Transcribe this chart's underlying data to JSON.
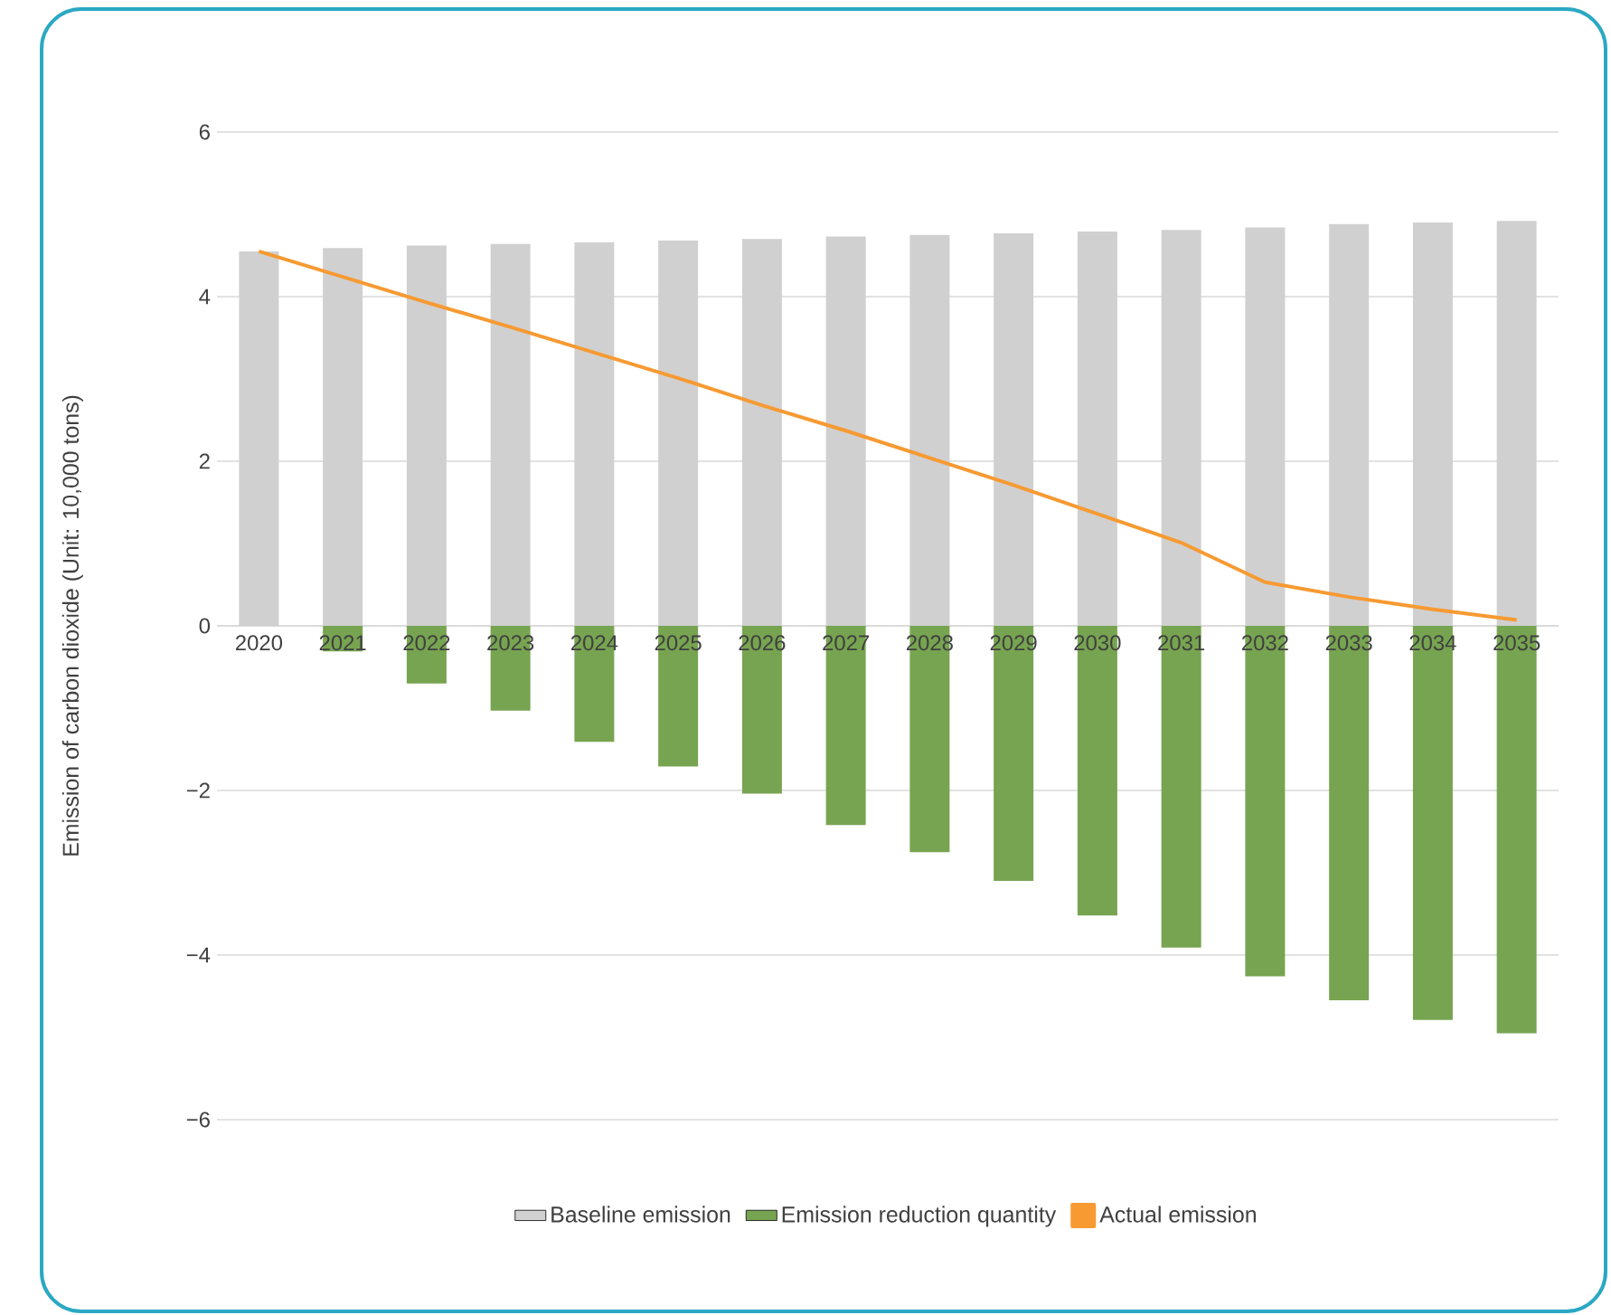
{
  "chart_data": {
    "type": "bar",
    "ylabel": "Emission of carbon dioxide (Unit: 10,000 tons)",
    "categories": [
      "2020",
      "2021",
      "2022",
      "2023",
      "2024",
      "2025",
      "2026",
      "2027",
      "2028",
      "2029",
      "2030",
      "2031",
      "2032",
      "2033",
      "2034",
      "2035"
    ],
    "series": [
      {
        "name": "Baseline emission",
        "color": "#d0d0d0",
        "values": [
          4.55,
          4.59,
          4.62,
          4.64,
          4.66,
          4.68,
          4.7,
          4.73,
          4.75,
          4.77,
          4.79,
          4.81,
          4.84,
          4.88,
          4.9,
          4.92
        ]
      },
      {
        "name": "Emission reduction quantity",
        "color": "#77a450",
        "values": [
          0,
          -0.31,
          -0.7,
          -1.03,
          -1.41,
          -1.71,
          -2.04,
          -2.42,
          -2.75,
          -3.1,
          -3.52,
          -3.91,
          -4.26,
          -4.55,
          -4.79,
          -4.95
        ]
      },
      {
        "name": "Actual emission",
        "type": "line",
        "color": "#f79a32",
        "values": [
          4.55,
          4.24,
          3.93,
          3.63,
          3.32,
          3.01,
          2.68,
          2.37,
          2.04,
          1.71,
          1.36,
          1.01,
          0.53,
          0.35,
          0.2,
          0.07
        ]
      }
    ],
    "ylim": [
      -6,
      6
    ],
    "yticks": [
      {
        "value": -6,
        "label": "−6"
      },
      {
        "value": -4,
        "label": "−4"
      },
      {
        "value": -2,
        "label": "−2"
      },
      0,
      2,
      4,
      6
    ],
    "stacked": true,
    "grid": "y",
    "legend": "bottom"
  }
}
